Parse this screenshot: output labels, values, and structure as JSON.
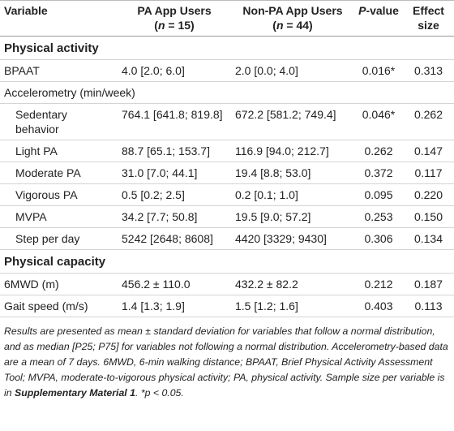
{
  "table": {
    "columns": [
      {
        "lines": [
          [
            {
              "text": "Variable"
            }
          ]
        ]
      },
      {
        "lines": [
          [
            {
              "text": "PA App Users"
            }
          ],
          [
            {
              "text": "("
            },
            {
              "text": "n",
              "italic": true
            },
            {
              "text": " = 15)"
            }
          ]
        ]
      },
      {
        "lines": [
          [
            {
              "text": "Non-PA App Users"
            }
          ],
          [
            {
              "text": "("
            },
            {
              "text": "n",
              "italic": true
            },
            {
              "text": " = 44)"
            }
          ]
        ]
      },
      {
        "lines": [
          [
            {
              "text": "P",
              "italic": true
            },
            {
              "text": "-value"
            }
          ]
        ]
      },
      {
        "lines": [
          [
            {
              "text": "Effect"
            }
          ],
          [
            {
              "text": "size"
            }
          ]
        ]
      }
    ],
    "rows": [
      {
        "section": "Physical activity"
      },
      {
        "label": "BPAAT",
        "indent": 0,
        "cells": [
          "4.0 [2.0; 6.0]",
          "2.0 [0.0; 4.0]",
          "0.016*",
          "0.313"
        ]
      },
      {
        "label": "Accelerometry (min/week)",
        "indent": 0
      },
      {
        "label": "Sedentary behavior",
        "indent": 1,
        "cells": [
          "764.1 [641.8; 819.8]",
          "672.2 [581.2; 749.4]",
          "0.046*",
          "0.262"
        ]
      },
      {
        "label": "Light PA",
        "indent": 1,
        "cells": [
          "88.7 [65.1; 153.7]",
          "116.9 [94.0; 212.7]",
          "0.262",
          "0.147"
        ]
      },
      {
        "label": "Moderate PA",
        "indent": 1,
        "cells": [
          "31.0 [7.0; 44.1]",
          "19.4 [8.8; 53.0]",
          "0.372",
          "0.117"
        ]
      },
      {
        "label": "Vigorous PA",
        "indent": 1,
        "cells": [
          "0.5 [0.2; 2.5]",
          "0.2 [0.1; 1.0]",
          "0.095",
          "0.220"
        ]
      },
      {
        "label": "MVPA",
        "indent": 1,
        "cells": [
          "34.2 [7.7; 50.8]",
          "19.5 [9.0; 57.2]",
          "0.253",
          "0.150"
        ]
      },
      {
        "label": "Step per day",
        "indent": 1,
        "cells": [
          "5242 [2648; 8608]",
          "4420 [3329; 9430]",
          "0.306",
          "0.134"
        ]
      },
      {
        "section": "Physical capacity"
      },
      {
        "label": "6MWD (m)",
        "indent": 0,
        "cells": [
          "456.2 ± 110.0",
          "432.2 ± 82.2",
          "0.212",
          "0.187"
        ]
      },
      {
        "label": "Gait speed (m/s)",
        "indent": 0,
        "cells": [
          "1.4 [1.3; 1.9]",
          "1.5 [1.2; 1.6]",
          "0.403",
          "0.113"
        ]
      }
    ],
    "footnote": [
      {
        "text": "Results are presented as mean ± standard deviation for variables that follow a normal distribution, and as median [P25; P75] for variables not following a normal distribution. Accelerometry-based data are a mean of 7 days. 6MWD, 6-min walking distance; BPAAT, Brief Physical Activity Assessment Tool; MVPA, moderate-to-vigorous physical activity; PA, physical activity. Sample size per variable is in "
      },
      {
        "text": "Supplementary Material 1",
        "bold": true
      },
      {
        "text": ". *p < 0.05."
      }
    ]
  }
}
